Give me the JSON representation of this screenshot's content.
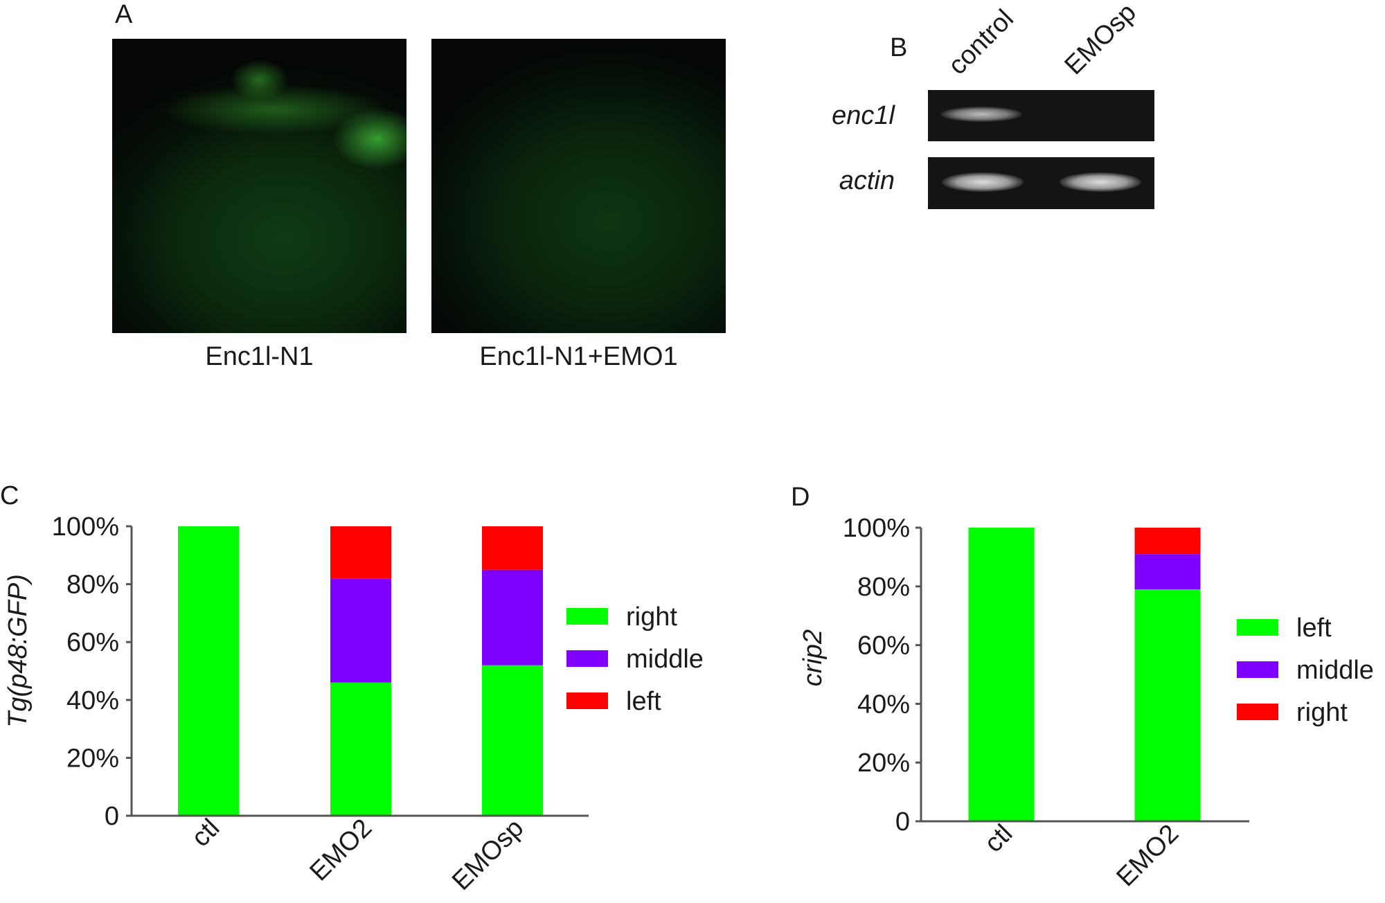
{
  "panel_a": {
    "letter": "A",
    "left_caption": "Enc1l-N1",
    "right_caption": "Enc1l-N1+EMO1"
  },
  "panel_b": {
    "letter": "B",
    "lanes": [
      "control",
      "EMOsp"
    ],
    "rows": [
      {
        "label": "enc1l",
        "bands": [
          true,
          false
        ]
      },
      {
        "label": "actin",
        "bands": [
          true,
          true
        ]
      }
    ]
  },
  "colors": {
    "green": "#00ff00",
    "purple": "#8000ff",
    "red": "#ff0000"
  },
  "chart_data": [
    {
      "type": "bar",
      "stacked": true,
      "letter": "C",
      "ylabel": "Tg(p48:GFP)",
      "categories": [
        "ctl",
        "EMO2",
        "EMOsp"
      ],
      "yticks": [
        "0",
        "20%",
        "40%",
        "60%",
        "80%",
        "100%"
      ],
      "ylim": [
        0,
        100
      ],
      "series": [
        {
          "name": "right",
          "color": "#00ff00",
          "values": [
            100,
            46,
            52
          ]
        },
        {
          "name": "middle",
          "color": "#8000ff",
          "values": [
            0,
            36,
            33
          ]
        },
        {
          "name": "left",
          "color": "#ff0000",
          "values": [
            0,
            18,
            15
          ]
        }
      ],
      "legend_position": "right"
    },
    {
      "type": "bar",
      "stacked": true,
      "letter": "D",
      "ylabel": "crip2",
      "categories": [
        "ctl",
        "EMO2"
      ],
      "yticks": [
        "0",
        "20%",
        "40%",
        "60%",
        "80%",
        "100%"
      ],
      "ylim": [
        0,
        100
      ],
      "series": [
        {
          "name": "left",
          "color": "#00ff00",
          "values": [
            100,
            79
          ]
        },
        {
          "name": "middle",
          "color": "#8000ff",
          "values": [
            0,
            12
          ]
        },
        {
          "name": "right",
          "color": "#ff0000",
          "values": [
            0,
            9
          ]
        }
      ],
      "legend_position": "right"
    }
  ]
}
